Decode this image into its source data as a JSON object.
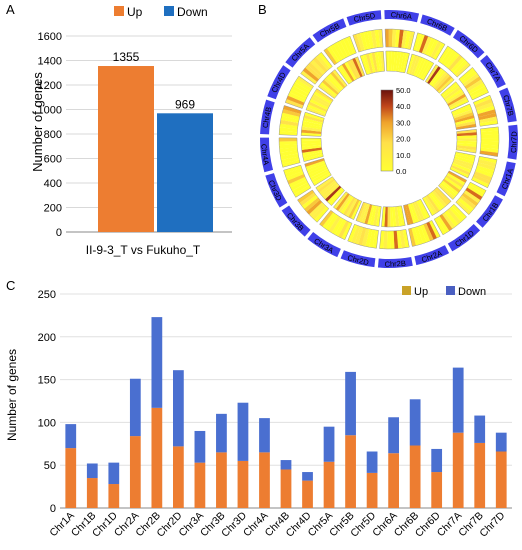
{
  "panels": {
    "A": {
      "label": "A"
    },
    "B": {
      "label": "B"
    },
    "C": {
      "label": "C"
    }
  },
  "colors": {
    "up_a": "#ED7D31",
    "down_a": "#1F6FC0",
    "up_c": "#C9A227",
    "down_c": "#4A5FC1",
    "c_up_fill": "#ED7D31",
    "c_down_fill": "#4A6FD0",
    "ring": "#4040E8"
  },
  "chart_data": [
    {
      "id": "A",
      "type": "bar",
      "categories": [
        "II-9-3_T vs Fukuho_T"
      ],
      "series": [
        {
          "name": "Up",
          "values": [
            1355
          ]
        },
        {
          "name": "Down",
          "values": [
            969
          ]
        }
      ],
      "data_labels": [
        "1355",
        "969"
      ],
      "xlabel": "II-9-3_T vs Fukuho_T",
      "ylabel": "Number of genes",
      "ylim": [
        0,
        1600
      ],
      "yticks": [
        0,
        200,
        400,
        600,
        800,
        1000,
        1200,
        1400,
        1600
      ],
      "legend": "top"
    },
    {
      "id": "B",
      "type": "heatmap",
      "chromosomes": [
        "Chr1A",
        "Chr1B",
        "Chr1D",
        "Chr2A",
        "Chr2B",
        "Chr2D",
        "Chr3A",
        "Chr3B",
        "Chr3D",
        "Chr4A",
        "Chr4B",
        "Chr4D",
        "Chr5A",
        "Chr5B",
        "Chr5D",
        "Chr6A",
        "Chr6B",
        "Chr6D",
        "Chr7A",
        "Chr7B",
        "Chr7D"
      ],
      "scale_labels": [
        "50.0",
        "40.0",
        "30.0",
        "20.0",
        "10.0",
        "0.0"
      ],
      "scale_range": [
        0,
        50
      ]
    },
    {
      "id": "C",
      "type": "bar",
      "stacked": true,
      "categories": [
        "Chr1A",
        "Chr1B",
        "Chr1D",
        "Chr2A",
        "Chr2B",
        "Chr2D",
        "Chr3A",
        "Chr3B",
        "Chr3D",
        "Chr4A",
        "Chr4B",
        "Chr4D",
        "Chr5A",
        "Chr5B",
        "Chr5D",
        "Chr6A",
        "Chr6B",
        "Chr6D",
        "Chr7A",
        "Chr7B",
        "Chr7D"
      ],
      "series": [
        {
          "name": "Up",
          "values": [
            70,
            35,
            28,
            84,
            117,
            72,
            53,
            65,
            55,
            65,
            45,
            32,
            54,
            85,
            41,
            64,
            73,
            42,
            88,
            76,
            66
          ]
        },
        {
          "name": "Down",
          "values": [
            28,
            17,
            25,
            67,
            106,
            89,
            37,
            45,
            68,
            40,
            11,
            10,
            41,
            74,
            25,
            42,
            54,
            27,
            76,
            32,
            22
          ]
        }
      ],
      "ylabel": "Number of genes",
      "ylim": [
        0,
        250
      ],
      "yticks": [
        0,
        50,
        100,
        150,
        200,
        250
      ],
      "legend": "top-right"
    }
  ]
}
